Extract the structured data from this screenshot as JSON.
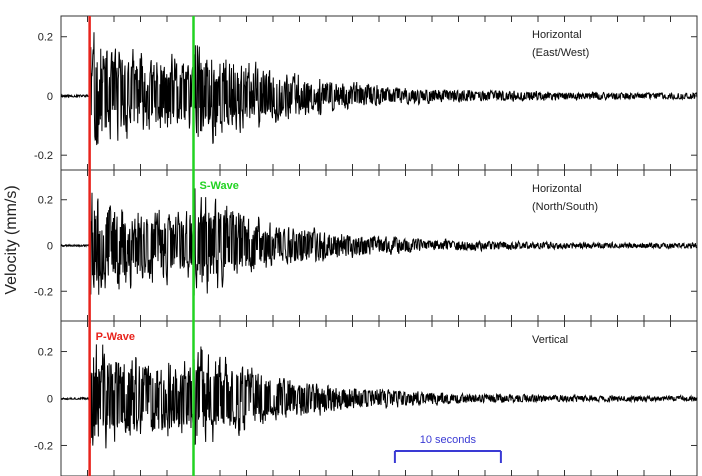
{
  "chart_data": {
    "type": "line",
    "ylabel": "Velocity (mm/s)",
    "time_window_s": 60,
    "panels": [
      {
        "label_line1": "Horizontal",
        "label_line2": "(East/West)",
        "ylim": [
          -0.25,
          0.27
        ],
        "yticks": [
          {
            "value": 0.2,
            "label": "0.2"
          },
          {
            "value": 0,
            "label": "0"
          },
          {
            "value": -0.2,
            "label": "-0.2"
          }
        ],
        "peak_amplitude": 0.25,
        "seed": 11
      },
      {
        "label_line1": "Horizontal",
        "label_line2": "(North/South)",
        "ylim": [
          -0.33,
          0.33
        ],
        "yticks": [
          {
            "value": 0.2,
            "label": "0.2"
          },
          {
            "value": 0,
            "label": "0"
          },
          {
            "value": -0.2,
            "label": "-0.2"
          }
        ],
        "peak_amplitude": 0.3,
        "seed": 23
      },
      {
        "label_line1": "Vertical",
        "label_line2": "",
        "ylim": [
          -0.33,
          0.33
        ],
        "yticks": [
          {
            "value": 0.2,
            "label": "0.2"
          },
          {
            "value": 0,
            "label": "0"
          },
          {
            "value": -0.2,
            "label": "-0.2"
          }
        ],
        "peak_amplitude": 0.3,
        "seed": 37
      }
    ],
    "markers": [
      {
        "name": "P-Wave",
        "label": "P-Wave",
        "time_s": 2.7,
        "color": "#e8231c",
        "label_panel": 2
      },
      {
        "name": "S-Wave",
        "label": "S-Wave",
        "time_s": 12.5,
        "color": "#22d322",
        "label_panel": 1
      }
    ],
    "scale_bar": {
      "label": "10 seconds",
      "start_s": 31.5,
      "end_s": 41.5,
      "color": "#3a3ad4"
    },
    "trace_color": "#000000",
    "grid": false
  }
}
